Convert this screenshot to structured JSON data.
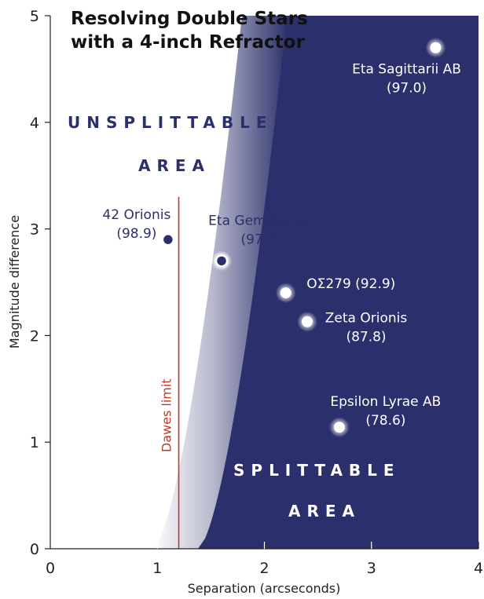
{
  "chart_data": {
    "type": "scatter",
    "title_line1": "Resolving Double Stars",
    "title_line2": "with a 4-inch Refractor",
    "xlabel": "Separation (arcseconds)",
    "ylabel": "Magnitude difference",
    "xlim": [
      0,
      4
    ],
    "ylim": [
      0,
      5
    ],
    "x_ticks": [
      "0",
      "1",
      "2",
      "3",
      "4"
    ],
    "y_ticks": [
      "0",
      "1",
      "2",
      "3",
      "4",
      "5"
    ],
    "dawes_limit": {
      "label": "Dawes limit",
      "x": 1.2,
      "y_top": 3.3
    },
    "regions": {
      "unsplittable_line1": "UNSPLITTABLE",
      "unsplittable_line2": "AREA",
      "splittable_line1": "SPLITTABLE",
      "splittable_line2": "AREA"
    },
    "colors": {
      "splittable": "#2b2f6b",
      "unsplittable": "#ffffff",
      "dawes_line": "#c0392b",
      "star_dark": "#2b2f6b",
      "star_light": "#ffffff"
    },
    "stars": [
      {
        "name": "42 Orionis",
        "score": "(98.9)",
        "x": 1.1,
        "y": 2.9
      },
      {
        "name": "Eta Geminorum",
        "score": "(97.4)",
        "x": 1.6,
        "y": 2.7
      },
      {
        "name": "ΟΣ279",
        "score": "(92.9)",
        "x": 2.2,
        "y": 2.4
      },
      {
        "name": "Zeta Orionis",
        "score": "(87.8)",
        "x": 2.4,
        "y": 2.13
      },
      {
        "name": "Epsilon Lyrae AB",
        "score": "(78.6)",
        "x": 2.7,
        "y": 1.14
      },
      {
        "name": "Eta Sagittarii AB",
        "score": "(97.0)",
        "x": 3.6,
        "y": 4.7
      }
    ]
  }
}
